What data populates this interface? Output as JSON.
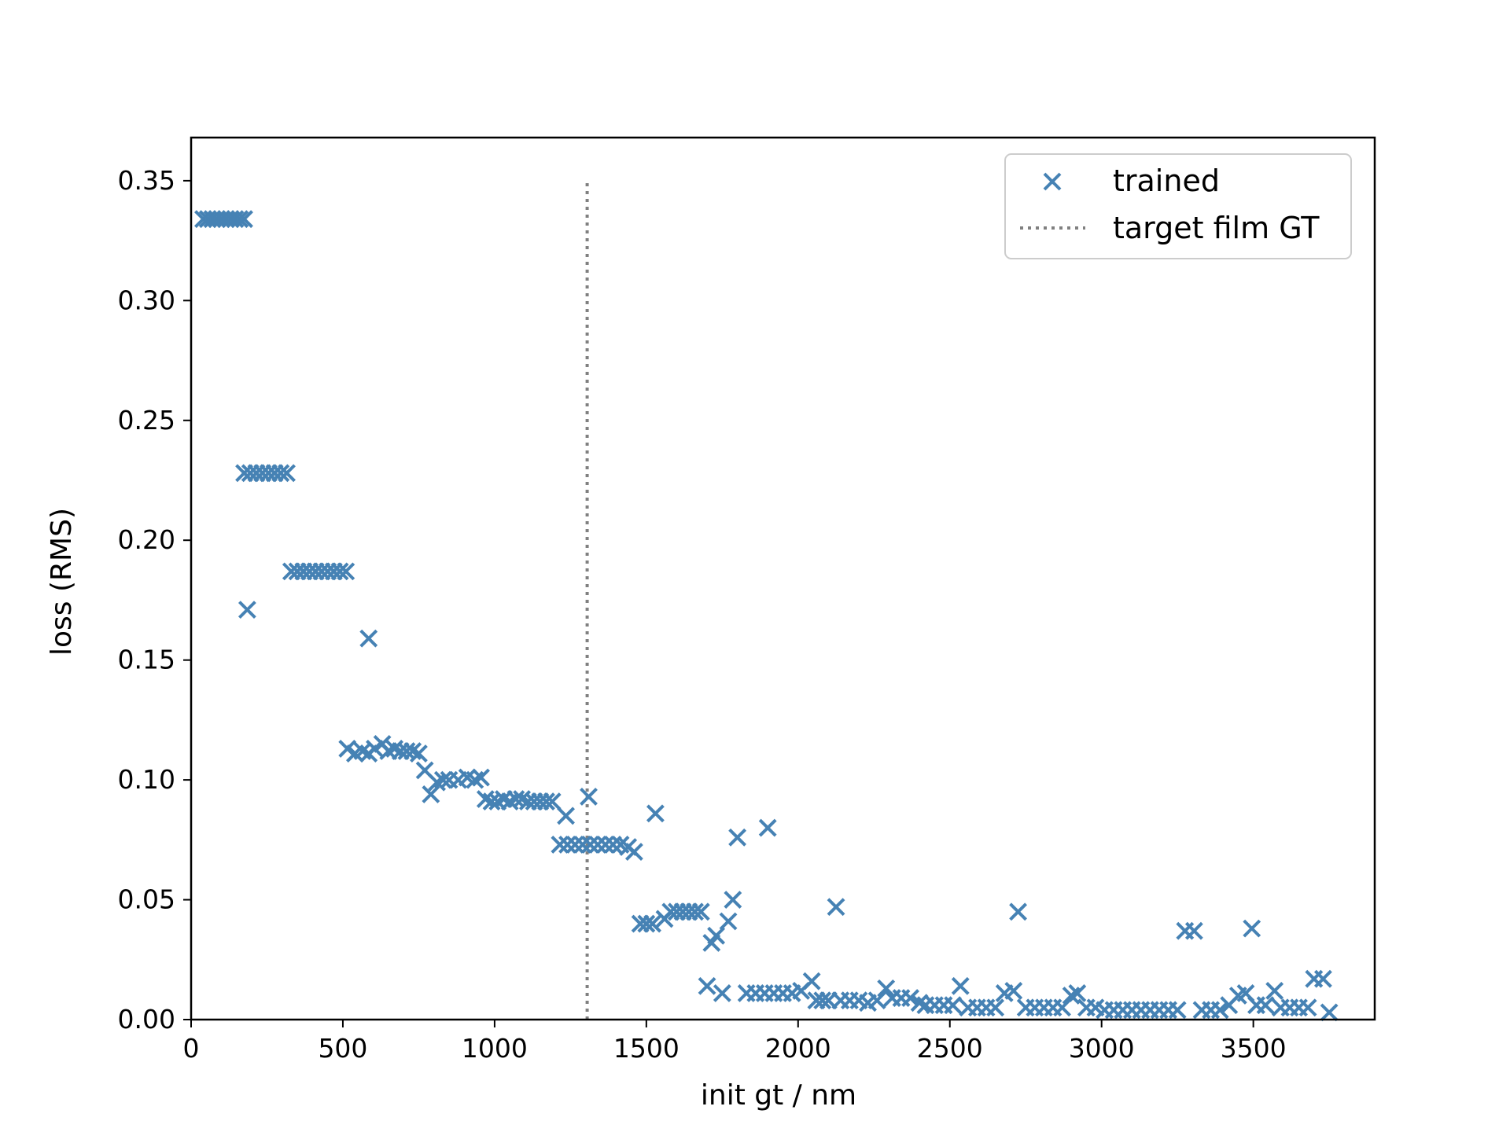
{
  "chart_data": {
    "type": "scatter",
    "title": "",
    "xlabel": "init gt / nm",
    "ylabel": "loss (RMS)",
    "xlim": [
      0,
      3900
    ],
    "ylim": [
      0,
      0.368
    ],
    "x_ticks": [
      0,
      500,
      1000,
      1500,
      2000,
      2500,
      3000,
      3500
    ],
    "y_ticks": [
      0.0,
      0.05,
      0.1,
      0.15,
      0.2,
      0.25,
      0.3,
      0.35
    ],
    "x_tick_labels": [
      "0",
      "500",
      "1000",
      "1500",
      "2000",
      "2500",
      "3000",
      "3500"
    ],
    "y_tick_labels": [
      "0.00",
      "0.05",
      "0.10",
      "0.15",
      "0.20",
      "0.25",
      "0.30",
      "0.35"
    ],
    "grid": false,
    "legend_position": "top-right",
    "series": [
      {
        "name": "trained",
        "marker": "x",
        "color": "#4682b4",
        "points": [
          [
            40,
            0.334
          ],
          [
            55,
            0.334
          ],
          [
            70,
            0.334
          ],
          [
            85,
            0.334
          ],
          [
            100,
            0.334
          ],
          [
            115,
            0.334
          ],
          [
            130,
            0.334
          ],
          [
            145,
            0.334
          ],
          [
            160,
            0.334
          ],
          [
            175,
            0.334
          ],
          [
            175,
            0.228
          ],
          [
            195,
            0.228
          ],
          [
            215,
            0.228
          ],
          [
            235,
            0.228
          ],
          [
            255,
            0.228
          ],
          [
            275,
            0.228
          ],
          [
            295,
            0.228
          ],
          [
            315,
            0.228
          ],
          [
            185,
            0.171
          ],
          [
            330,
            0.187
          ],
          [
            350,
            0.187
          ],
          [
            370,
            0.187
          ],
          [
            390,
            0.187
          ],
          [
            410,
            0.187
          ],
          [
            430,
            0.187
          ],
          [
            450,
            0.187
          ],
          [
            470,
            0.187
          ],
          [
            490,
            0.187
          ],
          [
            510,
            0.187
          ],
          [
            585,
            0.159
          ],
          [
            515,
            0.113
          ],
          [
            540,
            0.111
          ],
          [
            565,
            0.112
          ],
          [
            585,
            0.111
          ],
          [
            605,
            0.113
          ],
          [
            630,
            0.115
          ],
          [
            650,
            0.112
          ],
          [
            670,
            0.113
          ],
          [
            690,
            0.112
          ],
          [
            710,
            0.112
          ],
          [
            730,
            0.112
          ],
          [
            750,
            0.111
          ],
          [
            770,
            0.104
          ],
          [
            790,
            0.094
          ],
          [
            810,
            0.099
          ],
          [
            830,
            0.1
          ],
          [
            850,
            0.1
          ],
          [
            880,
            0.1
          ],
          [
            910,
            0.101
          ],
          [
            935,
            0.1
          ],
          [
            955,
            0.101
          ],
          [
            970,
            0.092
          ],
          [
            990,
            0.091
          ],
          [
            1010,
            0.091
          ],
          [
            1030,
            0.092
          ],
          [
            1050,
            0.091
          ],
          [
            1070,
            0.092
          ],
          [
            1090,
            0.092
          ],
          [
            1110,
            0.091
          ],
          [
            1130,
            0.091
          ],
          [
            1150,
            0.091
          ],
          [
            1170,
            0.091
          ],
          [
            1190,
            0.091
          ],
          [
            1235,
            0.085
          ],
          [
            1310,
            0.093
          ],
          [
            1215,
            0.073
          ],
          [
            1240,
            0.073
          ],
          [
            1265,
            0.073
          ],
          [
            1290,
            0.073
          ],
          [
            1315,
            0.073
          ],
          [
            1340,
            0.073
          ],
          [
            1365,
            0.073
          ],
          [
            1390,
            0.073
          ],
          [
            1415,
            0.073
          ],
          [
            1440,
            0.072
          ],
          [
            1460,
            0.07
          ],
          [
            1530,
            0.086
          ],
          [
            1480,
            0.04
          ],
          [
            1500,
            0.04
          ],
          [
            1520,
            0.04
          ],
          [
            1560,
            0.042
          ],
          [
            1580,
            0.045
          ],
          [
            1600,
            0.045
          ],
          [
            1620,
            0.045
          ],
          [
            1640,
            0.045
          ],
          [
            1660,
            0.045
          ],
          [
            1680,
            0.045
          ],
          [
            1700,
            0.014
          ],
          [
            1715,
            0.032
          ],
          [
            1730,
            0.035
          ],
          [
            1750,
            0.011
          ],
          [
            1770,
            0.041
          ],
          [
            1785,
            0.05
          ],
          [
            1800,
            0.076
          ],
          [
            1900,
            0.08
          ],
          [
            1830,
            0.011
          ],
          [
            1860,
            0.011
          ],
          [
            1890,
            0.011
          ],
          [
            1920,
            0.011
          ],
          [
            1950,
            0.011
          ],
          [
            1980,
            0.011
          ],
          [
            2010,
            0.012
          ],
          [
            2045,
            0.016
          ],
          [
            2060,
            0.008
          ],
          [
            2080,
            0.008
          ],
          [
            2100,
            0.008
          ],
          [
            2125,
            0.047
          ],
          [
            2140,
            0.008
          ],
          [
            2170,
            0.008
          ],
          [
            2200,
            0.008
          ],
          [
            2230,
            0.007
          ],
          [
            2260,
            0.008
          ],
          [
            2290,
            0.013
          ],
          [
            2310,
            0.009
          ],
          [
            2340,
            0.009
          ],
          [
            2370,
            0.009
          ],
          [
            2400,
            0.007
          ],
          [
            2420,
            0.006
          ],
          [
            2450,
            0.006
          ],
          [
            2480,
            0.006
          ],
          [
            2510,
            0.006
          ],
          [
            2535,
            0.014
          ],
          [
            2560,
            0.005
          ],
          [
            2590,
            0.005
          ],
          [
            2620,
            0.005
          ],
          [
            2650,
            0.005
          ],
          [
            2680,
            0.011
          ],
          [
            2710,
            0.012
          ],
          [
            2725,
            0.045
          ],
          [
            2750,
            0.005
          ],
          [
            2780,
            0.005
          ],
          [
            2810,
            0.005
          ],
          [
            2840,
            0.005
          ],
          [
            2870,
            0.005
          ],
          [
            2900,
            0.01
          ],
          [
            2920,
            0.011
          ],
          [
            2950,
            0.005
          ],
          [
            2980,
            0.005
          ],
          [
            3010,
            0.004
          ],
          [
            3040,
            0.004
          ],
          [
            3070,
            0.004
          ],
          [
            3100,
            0.004
          ],
          [
            3130,
            0.004
          ],
          [
            3160,
            0.004
          ],
          [
            3190,
            0.004
          ],
          [
            3220,
            0.004
          ],
          [
            3250,
            0.004
          ],
          [
            3275,
            0.037
          ],
          [
            3305,
            0.037
          ],
          [
            3330,
            0.004
          ],
          [
            3360,
            0.004
          ],
          [
            3390,
            0.004
          ],
          [
            3420,
            0.006
          ],
          [
            3450,
            0.01
          ],
          [
            3475,
            0.011
          ],
          [
            3495,
            0.038
          ],
          [
            3510,
            0.006
          ],
          [
            3540,
            0.006
          ],
          [
            3570,
            0.012
          ],
          [
            3590,
            0.005
          ],
          [
            3620,
            0.005
          ],
          [
            3650,
            0.005
          ],
          [
            3680,
            0.005
          ],
          [
            3700,
            0.017
          ],
          [
            3730,
            0.017
          ],
          [
            3750,
            0.003
          ]
        ]
      }
    ],
    "reference_lines": [
      {
        "name": "target film GT",
        "orientation": "vertical",
        "x": 1305,
        "y_range": [
          0,
          0.35
        ],
        "style": "dotted",
        "color": "#808080"
      }
    ]
  }
}
